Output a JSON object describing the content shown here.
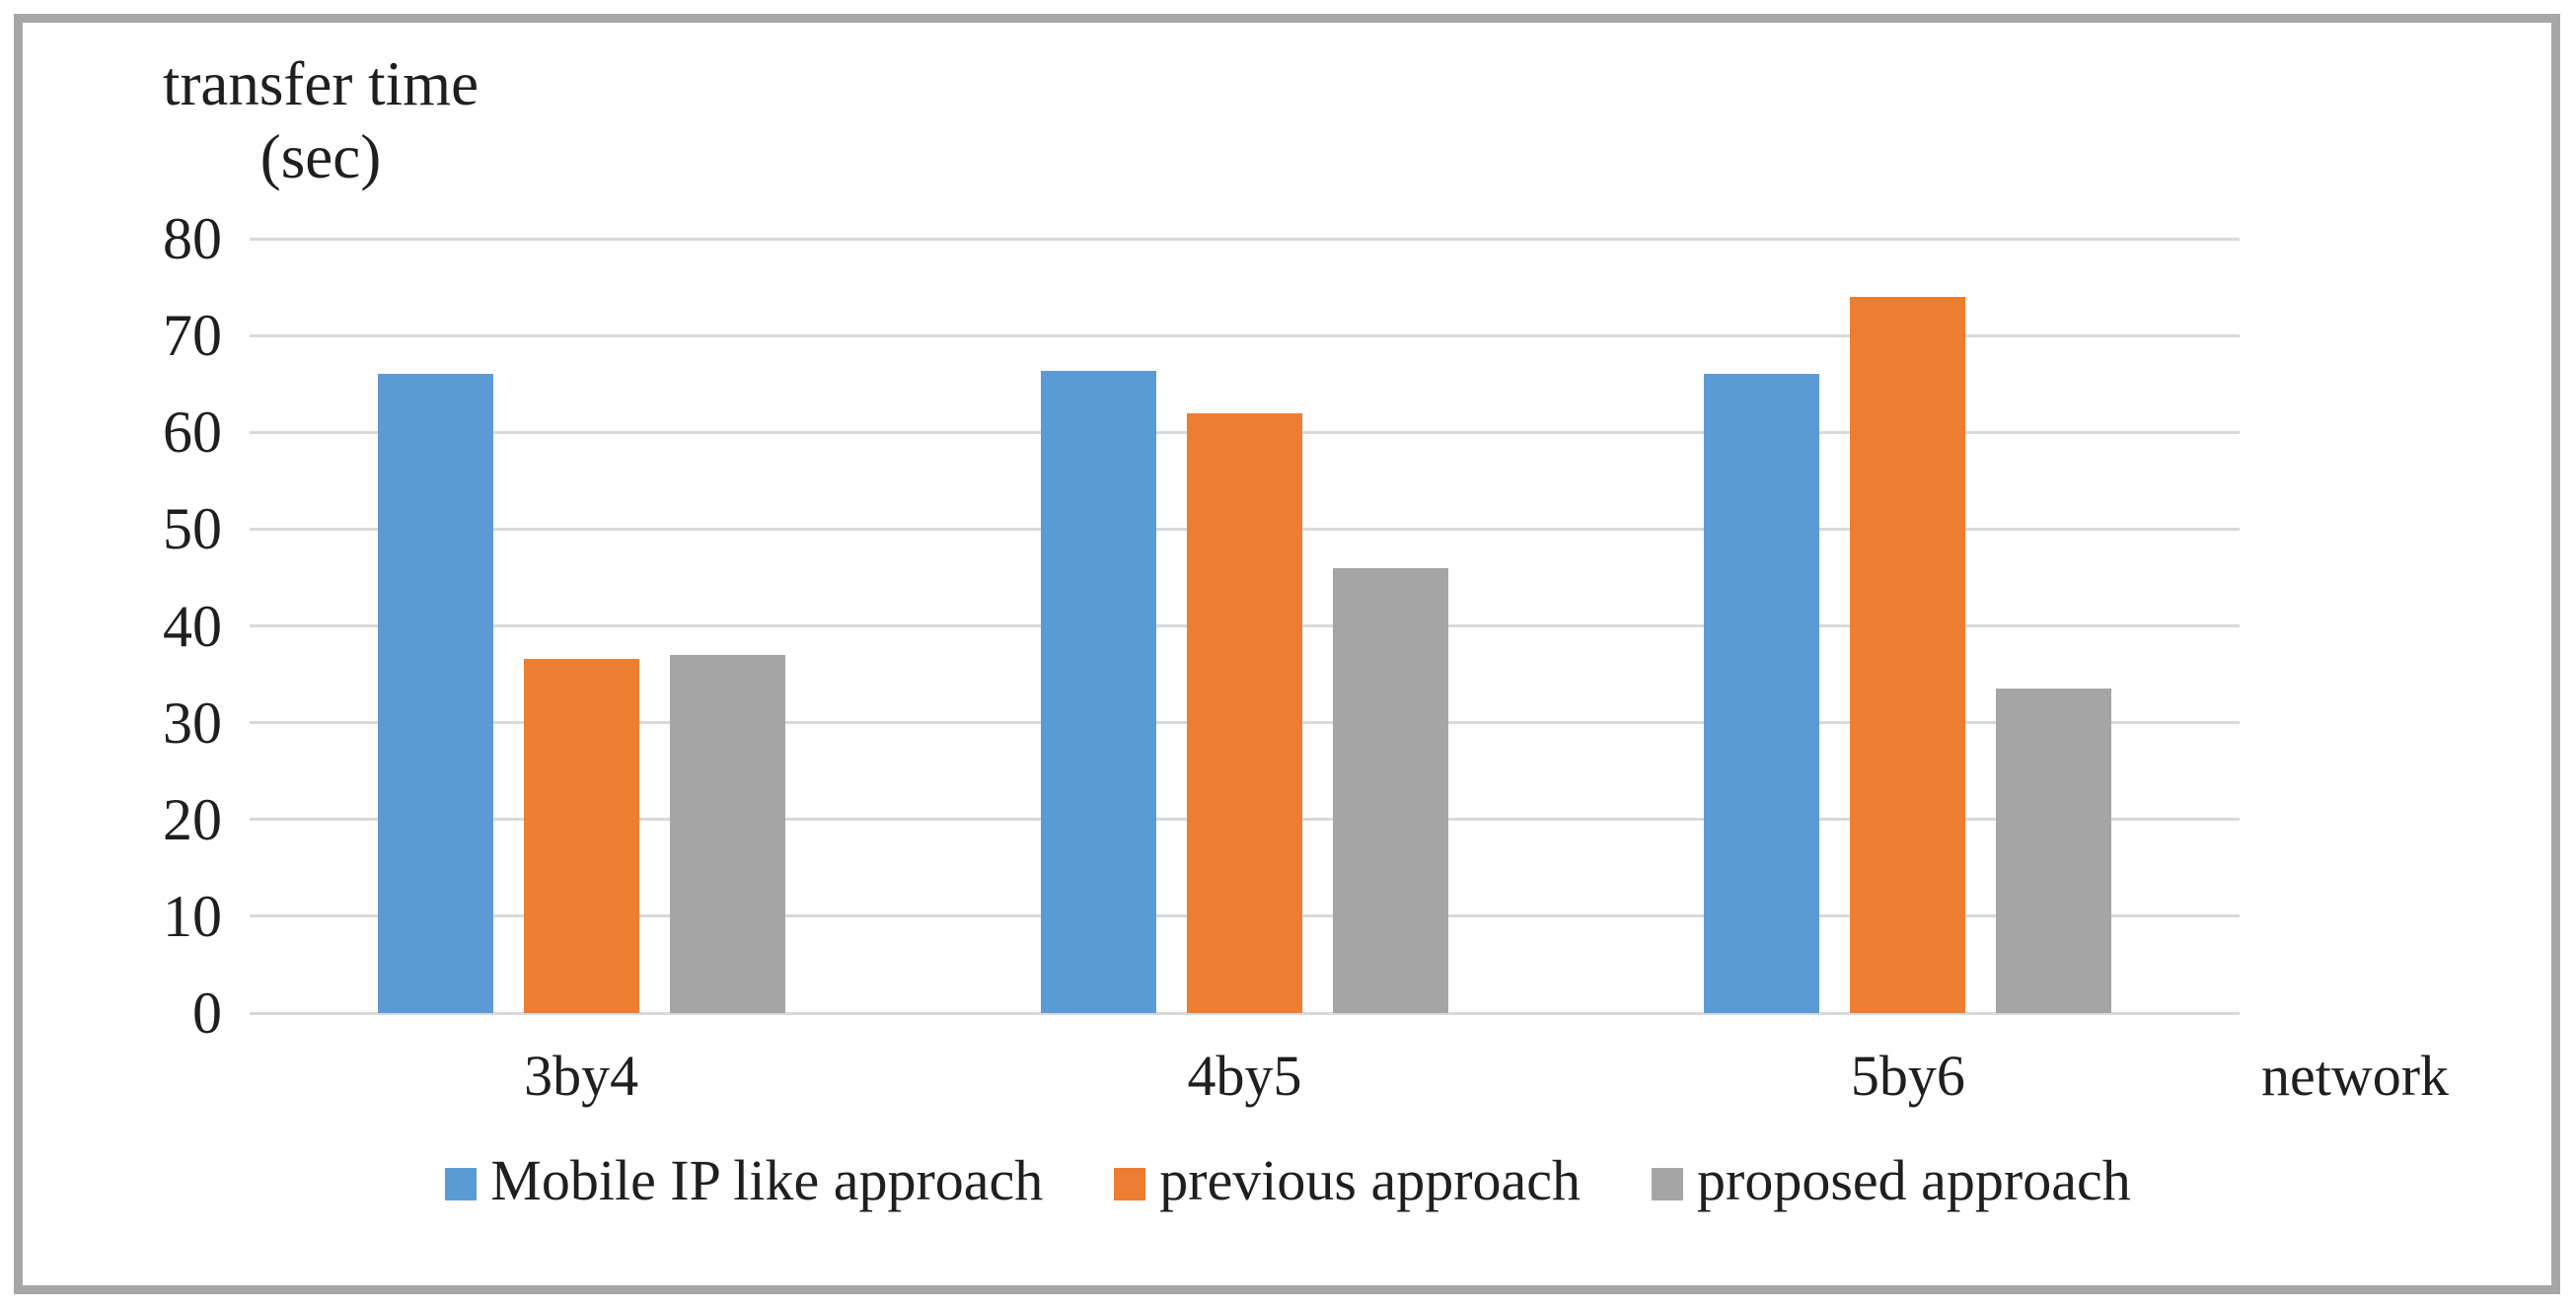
{
  "chart_data": {
    "type": "bar",
    "title": "transfer time",
    "title_line2": "(sec)",
    "xlabel": "network",
    "ylabel": "transfer time (sec)",
    "categories": [
      "3by4",
      "4by5",
      "5by6"
    ],
    "series": [
      {
        "name": "Mobile IP like approach",
        "color": "#5B9BD5",
        "values": [
          66,
          66.3,
          66
        ]
      },
      {
        "name": "previous approach",
        "color": "#ED7D31",
        "values": [
          36.6,
          62,
          74
        ]
      },
      {
        "name": "proposed approach",
        "color": "#A5A5A5",
        "values": [
          37,
          46,
          33.5
        ]
      }
    ],
    "ylim": [
      0,
      80
    ],
    "ytick_step": 10,
    "yticks": [
      "0",
      "10",
      "20",
      "30",
      "40",
      "50",
      "60",
      "70",
      "80"
    ],
    "grid": true,
    "legend_position": "bottom"
  },
  "colors": {
    "gridline": "#D9D9D9",
    "frame_border": "#A6A6A6",
    "text": "#1F1F1F",
    "background": "#FFFFFF"
  }
}
